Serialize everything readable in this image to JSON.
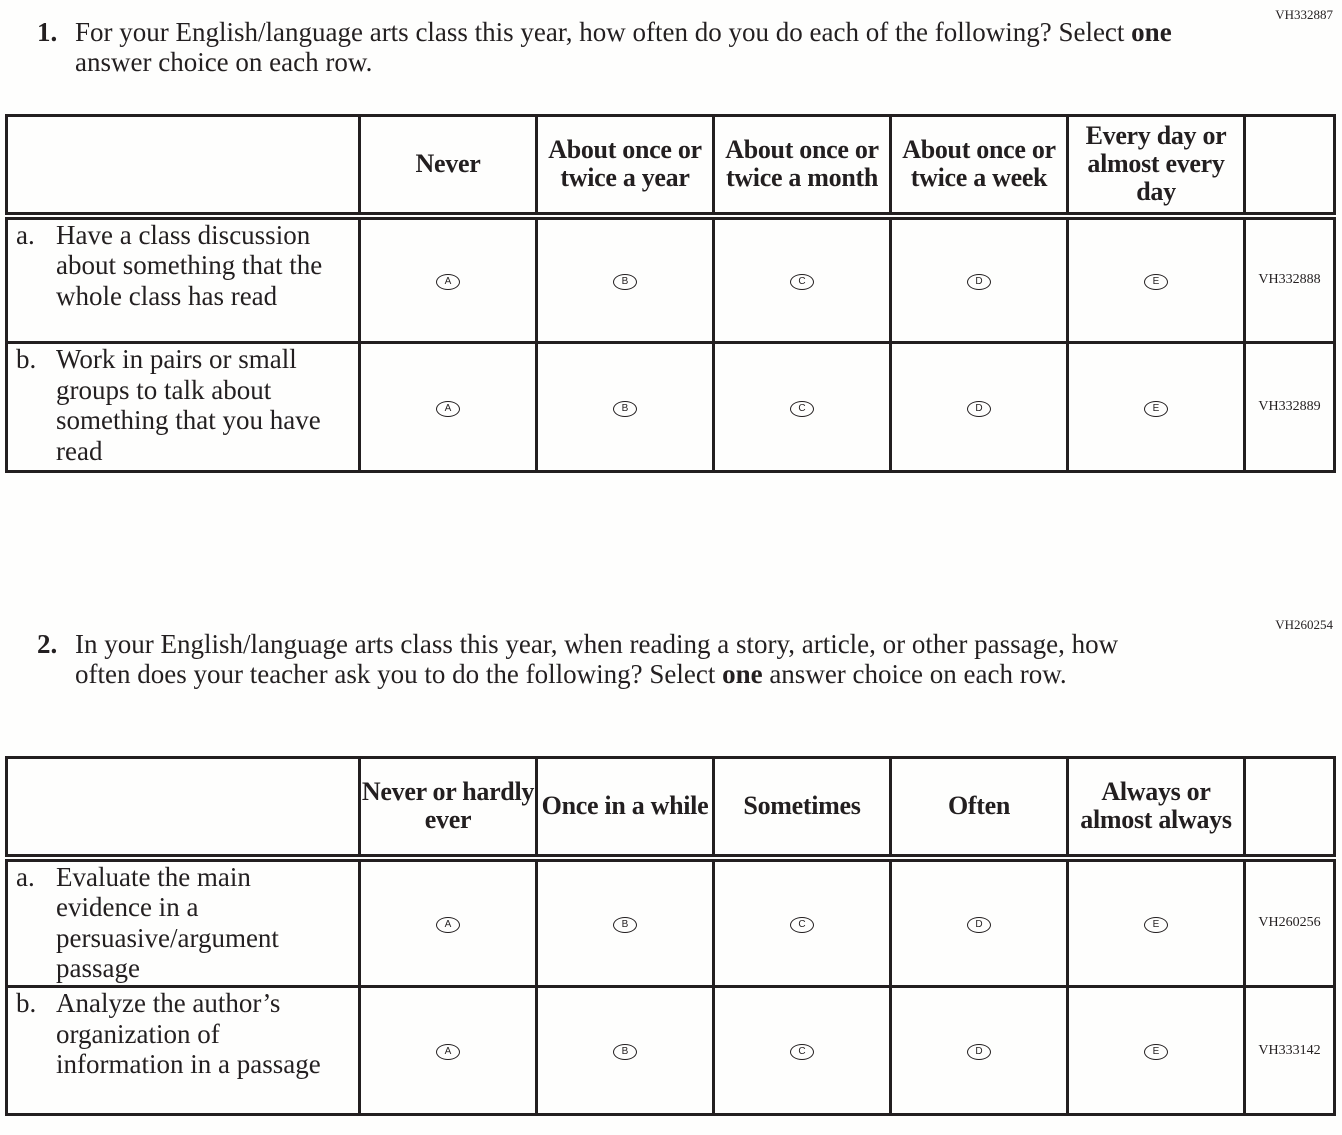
{
  "questions": [
    {
      "code": "VH332887",
      "number": "1.",
      "text_parts": [
        "For your English/language arts class this year, how often do you do each of the following? Select ",
        "one",
        " answer choice on each row."
      ],
      "columns": [
        "Never",
        "About once or twice a year",
        "About once or twice a month",
        "About once or twice a week",
        "Every day or almost every day"
      ],
      "rows": [
        {
          "letter": "a.",
          "text": "Have a class discussion about something that the whole class has read",
          "code": "VH332888"
        },
        {
          "letter": "b.",
          "text": "Work in pairs or small groups to talk about something that you have read",
          "code": "VH332889"
        }
      ]
    },
    {
      "code": "VH260254",
      "number": "2.",
      "text_parts": [
        "In your English/language arts class this year, when reading a story, article, or other passage, how often does your teacher ask you to do the following? Select ",
        "one",
        " answer choice on each row."
      ],
      "columns": [
        "Never or hardly ever",
        "Once in a while",
        "Sometimes",
        "Often",
        "Always or almost always"
      ],
      "rows": [
        {
          "letter": "a.",
          "text": "Evaluate the main evidence in a persuasive/argument passage",
          "code": "VH260256"
        },
        {
          "letter": "b.",
          "text": "Analyze the author’s organization of information in a passage",
          "code": "VH333142"
        }
      ]
    }
  ],
  "bubble_labels": [
    "A",
    "B",
    "C",
    "D",
    "E"
  ]
}
